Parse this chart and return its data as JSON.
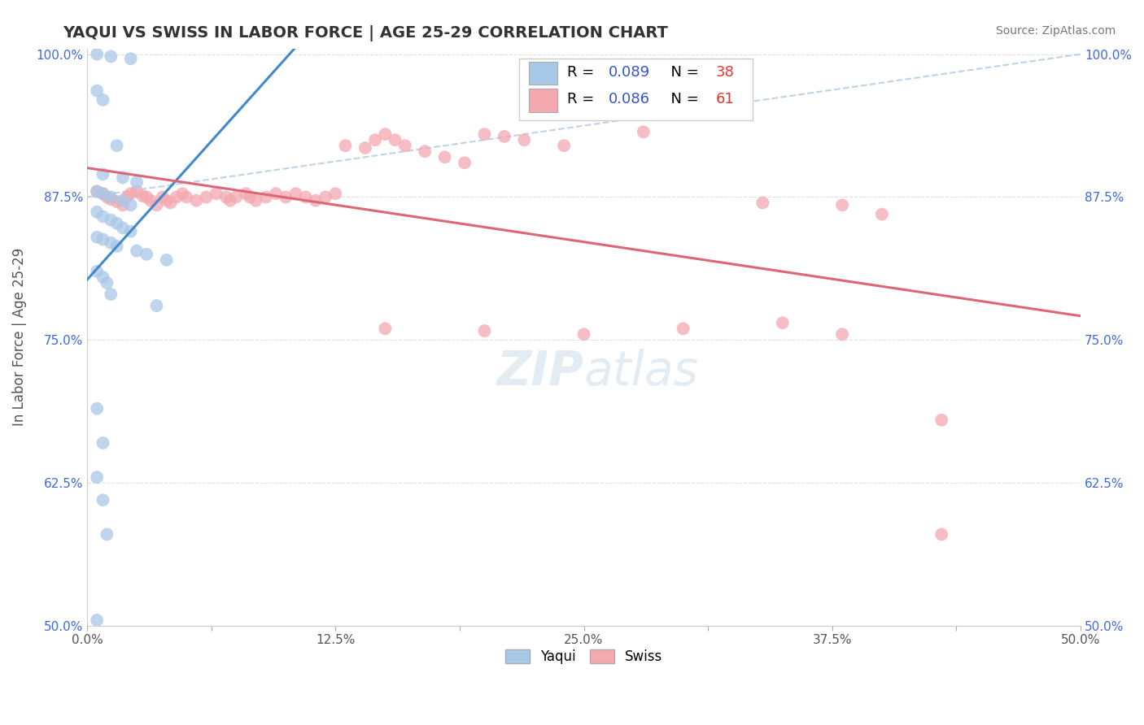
{
  "title": "YAQUI VS SWISS IN LABOR FORCE | AGE 25-29 CORRELATION CHART",
  "source": "Source: ZipAtlas.com",
  "ylabel": "In Labor Force | Age 25-29",
  "xlim": [
    0.0,
    0.5
  ],
  "ylim": [
    0.5,
    1.005
  ],
  "xtick_labels": [
    "0.0%",
    "",
    "12.5%",
    "",
    "25.0%",
    "",
    "37.5%",
    "",
    "50.0%"
  ],
  "xtick_values": [
    0.0,
    0.0625,
    0.125,
    0.1875,
    0.25,
    0.3125,
    0.375,
    0.4375,
    0.5
  ],
  "ytick_labels": [
    "50.0%",
    "",
    "62.5%",
    "",
    "75.0%",
    "",
    "87.5%",
    "",
    "100.0%"
  ],
  "ytick_values": [
    0.5,
    0.5625,
    0.625,
    0.6875,
    0.75,
    0.8125,
    0.875,
    0.9375,
    1.0
  ],
  "ytick_labels_shown": [
    "50.0%",
    "62.5%",
    "75.0%",
    "87.5%",
    "100.0%"
  ],
  "ytick_values_shown": [
    0.5,
    0.625,
    0.75,
    0.875,
    1.0
  ],
  "yaqui_color": "#a8c8e8",
  "swiss_color": "#f4a8b0",
  "yaqui_R": 0.089,
  "yaqui_N": 38,
  "swiss_R": 0.086,
  "swiss_N": 61,
  "legend_label_yaqui": "Yaqui",
  "legend_label_swiss": "Swiss",
  "legend_R_color": "#3355cc",
  "legend_N_color": "#ee3333",
  "trend_yaqui_color": "#4488cc",
  "trend_swiss_color": "#dd6677",
  "diagonal_color": "#b0c8e0",
  "background_color": "#ffffff",
  "grid_color": "#e0e0e0",
  "title_color": "#333333",
  "source_color": "#777777",
  "yaqui_x": [
    0.005,
    0.012,
    0.022,
    0.005,
    0.008,
    0.015,
    0.008,
    0.018,
    0.025,
    0.005,
    0.008,
    0.012,
    0.018,
    0.022,
    0.005,
    0.008,
    0.012,
    0.015,
    0.018,
    0.022,
    0.005,
    0.008,
    0.012,
    0.015,
    0.025,
    0.03,
    0.005,
    0.008,
    0.01,
    0.012,
    0.035,
    0.04,
    0.005,
    0.008,
    0.005,
    0.008,
    0.01,
    0.005
  ],
  "yaqui_y": [
    1.0,
    0.998,
    0.996,
    0.968,
    0.96,
    0.92,
    0.895,
    0.892,
    0.888,
    0.88,
    0.878,
    0.875,
    0.872,
    0.868,
    0.862,
    0.858,
    0.855,
    0.852,
    0.848,
    0.845,
    0.84,
    0.838,
    0.835,
    0.832,
    0.828,
    0.825,
    0.81,
    0.805,
    0.8,
    0.79,
    0.78,
    0.82,
    0.69,
    0.66,
    0.63,
    0.61,
    0.58,
    0.505
  ],
  "swiss_x": [
    0.005,
    0.008,
    0.01,
    0.012,
    0.015,
    0.018,
    0.02,
    0.022,
    0.025,
    0.028,
    0.03,
    0.032,
    0.035,
    0.038,
    0.04,
    0.042,
    0.045,
    0.048,
    0.05,
    0.055,
    0.06,
    0.065,
    0.07,
    0.072,
    0.075,
    0.08,
    0.082,
    0.085,
    0.09,
    0.095,
    0.1,
    0.105,
    0.11,
    0.115,
    0.12,
    0.125,
    0.13,
    0.14,
    0.145,
    0.15,
    0.155,
    0.16,
    0.17,
    0.18,
    0.19,
    0.2,
    0.21,
    0.22,
    0.24,
    0.28,
    0.34,
    0.38,
    0.4,
    0.15,
    0.2,
    0.25,
    0.3,
    0.35,
    0.38,
    0.43,
    0.43
  ],
  "swiss_y": [
    0.88,
    0.878,
    0.875,
    0.873,
    0.871,
    0.868,
    0.875,
    0.878,
    0.88,
    0.876,
    0.875,
    0.872,
    0.868,
    0.875,
    0.872,
    0.87,
    0.875,
    0.878,
    0.875,
    0.872,
    0.875,
    0.878,
    0.875,
    0.872,
    0.875,
    0.878,
    0.875,
    0.872,
    0.875,
    0.878,
    0.875,
    0.878,
    0.875,
    0.872,
    0.875,
    0.878,
    0.92,
    0.918,
    0.925,
    0.93,
    0.925,
    0.92,
    0.915,
    0.91,
    0.905,
    0.93,
    0.928,
    0.925,
    0.92,
    0.932,
    0.87,
    0.868,
    0.86,
    0.76,
    0.758,
    0.755,
    0.76,
    0.765,
    0.755,
    0.68,
    0.58
  ]
}
